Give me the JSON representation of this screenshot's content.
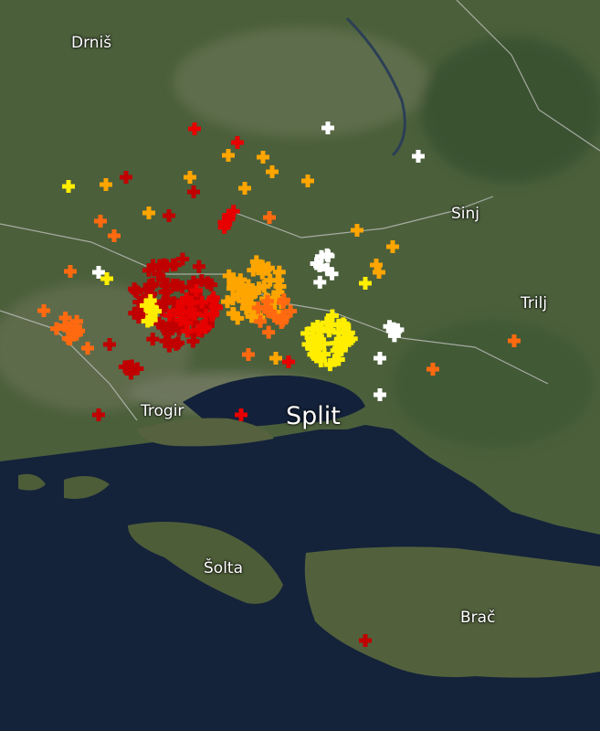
{
  "places": {
    "drnis": "Drniš",
    "sinj": "Sinj",
    "trilj": "Trilj",
    "trogir": "Trogir",
    "split": "Split",
    "solta": "Šolta",
    "brac": "Brač"
  },
  "strike_colors": {
    "newest": "#ffffff",
    "recent": "#ffee00",
    "mid": "#ffa500",
    "older": "#ff6a10",
    "old": "#e60000",
    "oldest": "#c00000"
  },
  "map_colors": {
    "land": "#4a5e3a",
    "sea": "#13213a"
  }
}
